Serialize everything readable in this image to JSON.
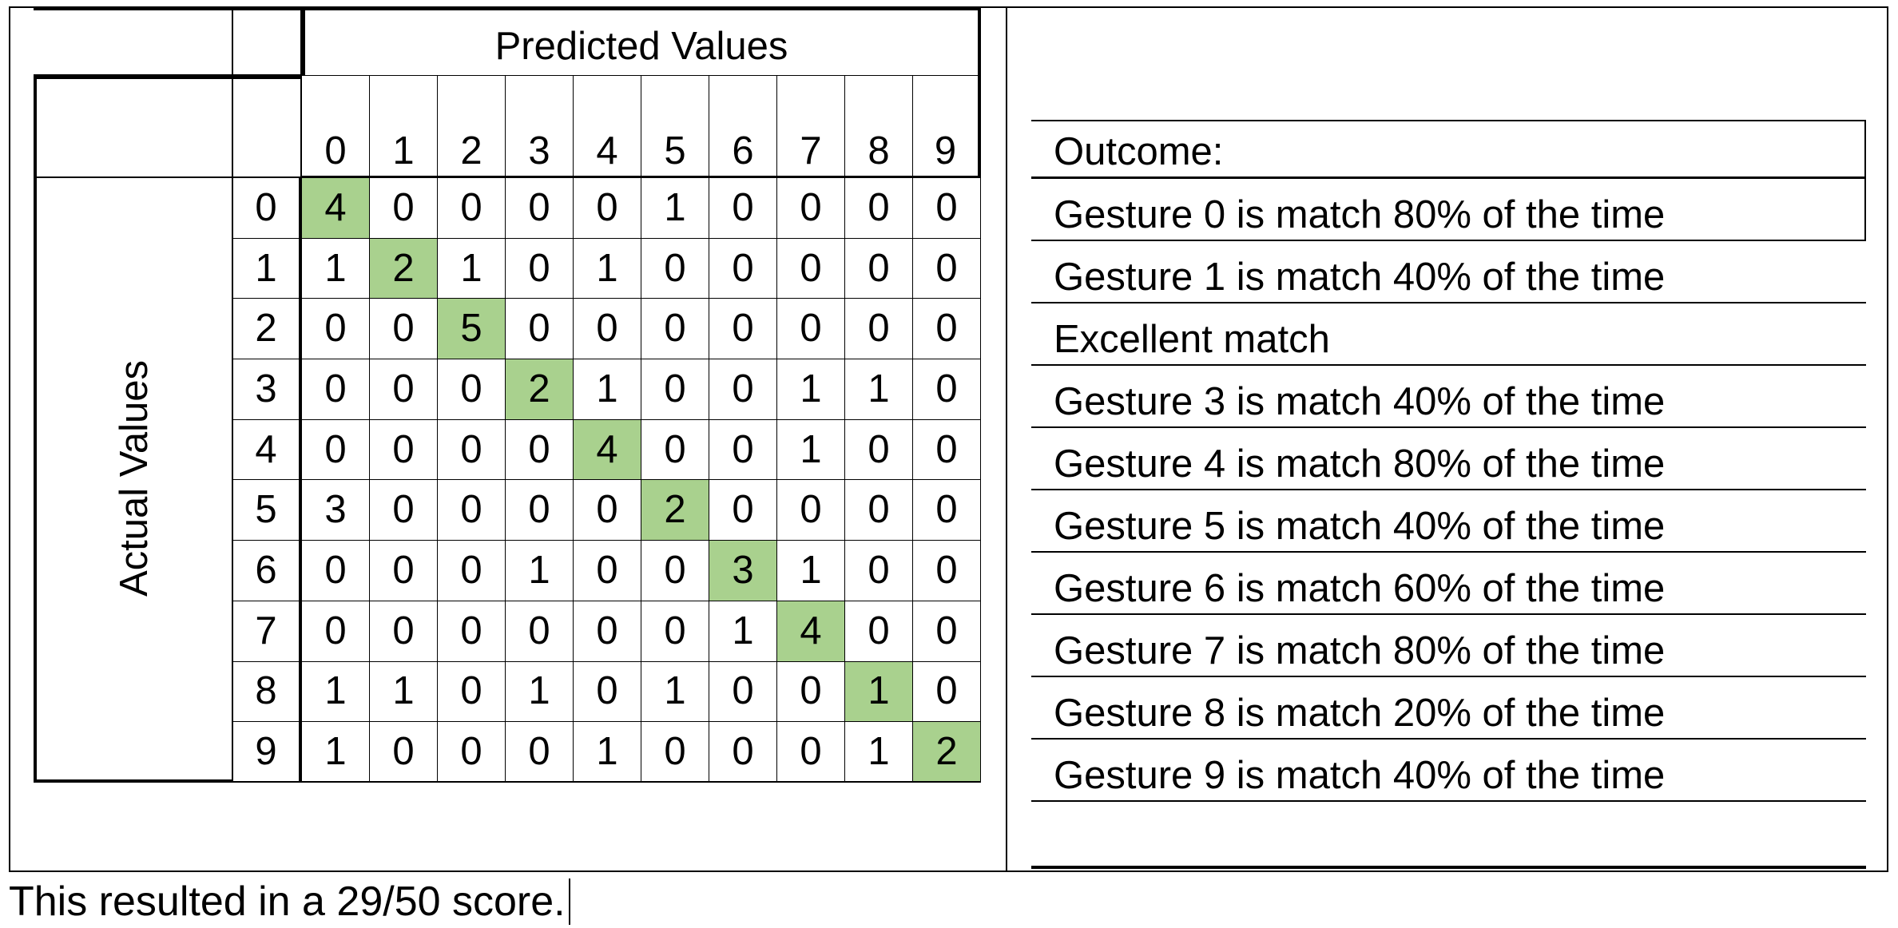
{
  "matrix": {
    "predicted_title": "Predicted Values",
    "actual_title": "Actual Values",
    "col_labels": [
      "0",
      "1",
      "2",
      "3",
      "4",
      "5",
      "6",
      "7",
      "8",
      "9"
    ],
    "row_labels": [
      "0",
      "1",
      "2",
      "3",
      "4",
      "5",
      "6",
      "7",
      "8",
      "9"
    ],
    "rows": [
      [
        "4",
        "0",
        "0",
        "0",
        "0",
        "1",
        "0",
        "0",
        "0",
        "0"
      ],
      [
        "1",
        "2",
        "1",
        "0",
        "1",
        "0",
        "0",
        "0",
        "0",
        "0"
      ],
      [
        "0",
        "0",
        "5",
        "0",
        "0",
        "0",
        "0",
        "0",
        "0",
        "0"
      ],
      [
        "0",
        "0",
        "0",
        "2",
        "1",
        "0",
        "0",
        "1",
        "1",
        "0"
      ],
      [
        "0",
        "0",
        "0",
        "0",
        "4",
        "0",
        "0",
        "1",
        "0",
        "0"
      ],
      [
        "3",
        "0",
        "0",
        "0",
        "0",
        "2",
        "0",
        "0",
        "0",
        "0"
      ],
      [
        "0",
        "0",
        "0",
        "1",
        "0",
        "0",
        "3",
        "1",
        "0",
        "0"
      ],
      [
        "0",
        "0",
        "0",
        "0",
        "0",
        "0",
        "1",
        "4",
        "0",
        "0"
      ],
      [
        "1",
        "1",
        "0",
        "1",
        "0",
        "1",
        "0",
        "0",
        "1",
        "0"
      ],
      [
        "1",
        "0",
        "0",
        "0",
        "1",
        "0",
        "0",
        "0",
        "1",
        "2"
      ]
    ],
    "diagonal_color": "#a9d18e"
  },
  "outcome": {
    "title": "Outcome:",
    "lines": [
      "Gesture 0 is match 80% of the time",
      "Gesture 1 is match 40% of the time",
      "Excellent match",
      "Gesture 3 is match 40% of the time",
      "Gesture 4 is match 80% of the time",
      "Gesture 5 is match 40% of the time",
      "Gesture 6 is match 60% of the time",
      "Gesture 7 is match 80% of the time",
      "Gesture 8 is match 20% of the time",
      "Gesture 9 is match 40% of the time"
    ]
  },
  "caption": "This resulted in a 29/50 score."
}
